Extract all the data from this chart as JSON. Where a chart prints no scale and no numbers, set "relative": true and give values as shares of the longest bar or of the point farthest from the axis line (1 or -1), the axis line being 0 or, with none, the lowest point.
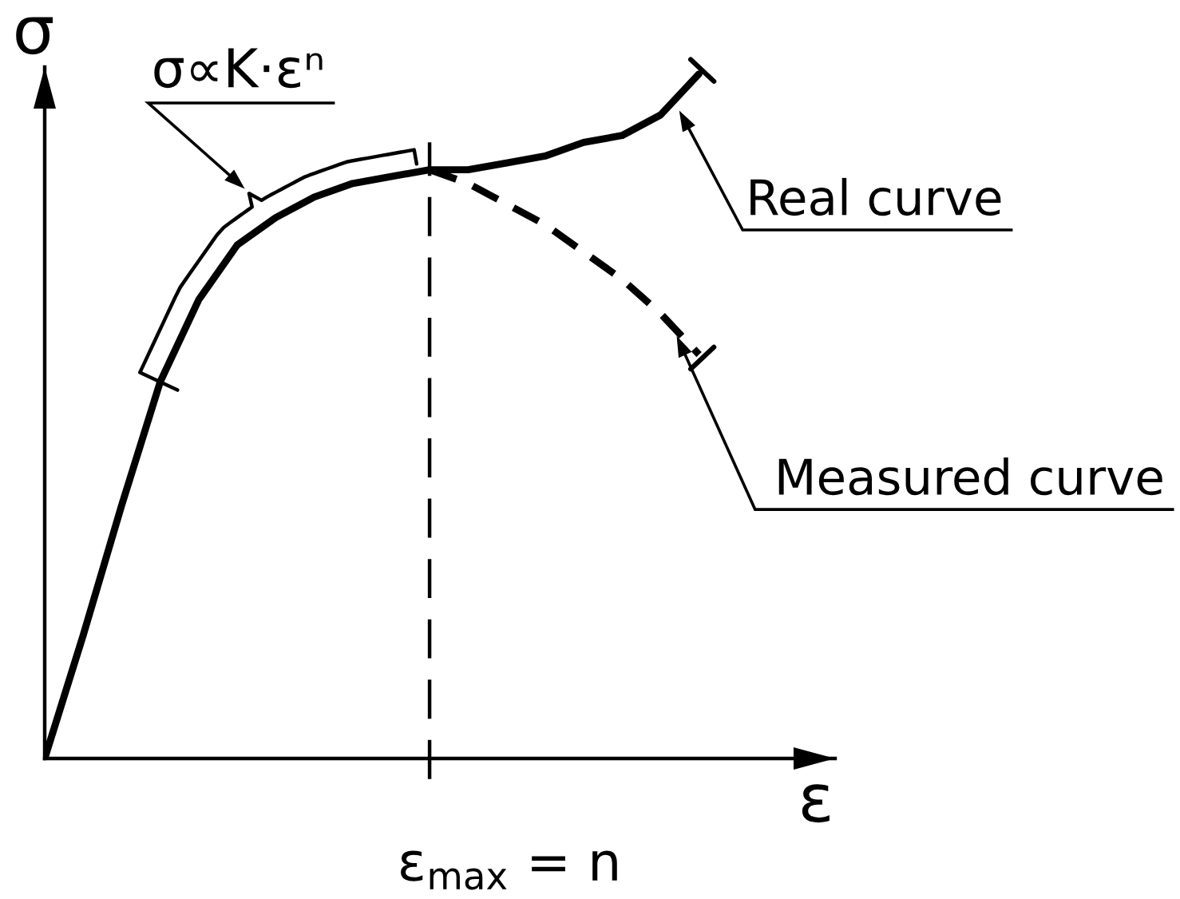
{
  "chart_data": {
    "type": "line",
    "xlabel": "ε",
    "ylabel": "σ",
    "annotations": [
      "σ∝K·εⁿ",
      "ε$_{max}$ = n"
    ],
    "relative": true,
    "line_style": "solid",
    "categories": [
      null,
      null,
      null,
      null,
      null,
      null,
      null,
      null,
      null,
      null,
      null,
      null,
      null,
      null,
      null,
      null,
      null,
      null
    ],
    "series": [
      {
        "name": "Real curve",
        "color": "#000000",
        "values": [
          0,
          0.18,
          0.37,
          0.55,
          0.67,
          0.75,
          0.79,
          0.82,
          0.84,
          0.85,
          0.86,
          0.86,
          0.87,
          0.88,
          0.9,
          0.91,
          0.94,
          1
        ]
      },
      {
        "name": "Measured curve",
        "color": "#000000",
        "line_style": "dashed",
        "values": [
          null,
          null,
          null,
          null,
          null,
          null,
          null,
          null,
          null,
          null,
          0.86,
          0.84,
          0.81,
          0.78,
          0.74,
          0.7,
          0.65,
          0.59
        ]
      }
    ]
  }
}
